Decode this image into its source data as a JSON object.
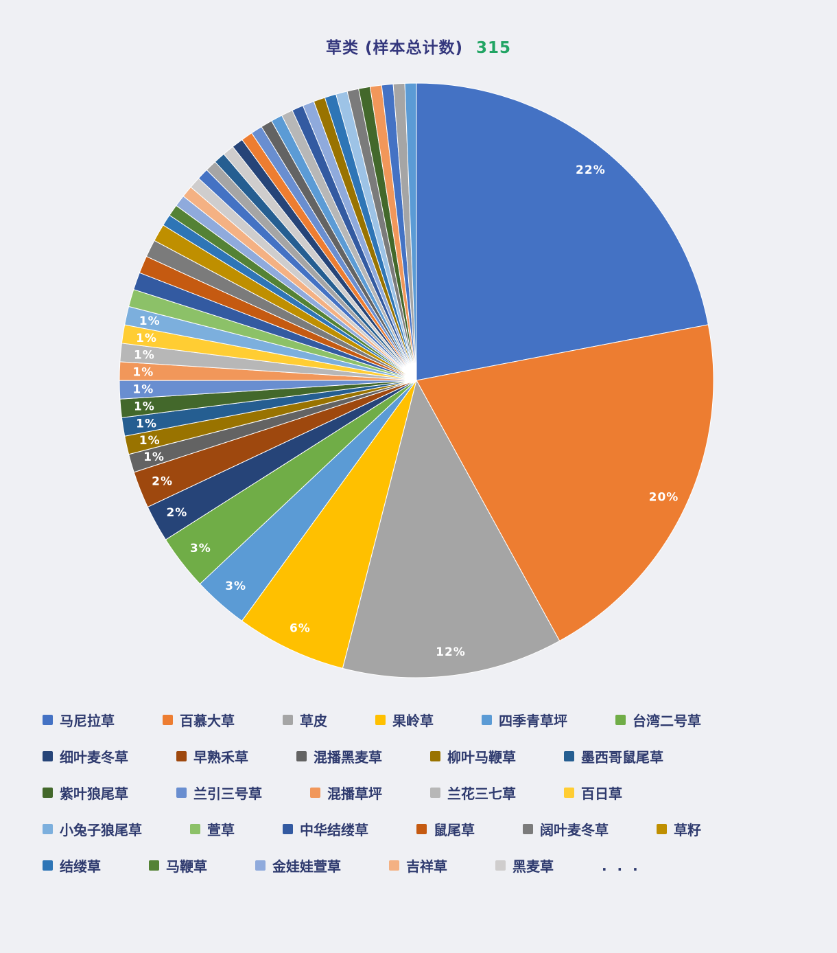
{
  "title": {
    "text": "草类 (样本总计数)",
    "total": "315",
    "text_color": "#34377d",
    "total_color": "#21a463"
  },
  "background_color": "#eff0f4",
  "chart_data": {
    "type": "pie",
    "title": "草类 (样本总计数) 315",
    "total_samples": 315,
    "legend_position": "bottom",
    "label_color": "#ffffff",
    "slices": [
      {
        "name": "马尼拉草",
        "percent": 22,
        "color": "#4472C4",
        "label": "22%"
      },
      {
        "name": "百慕大草",
        "percent": 20,
        "color": "#ED7D31",
        "label": "20%"
      },
      {
        "name": "草皮",
        "percent": 12,
        "color": "#A5A5A5",
        "label": "12%"
      },
      {
        "name": "果岭草",
        "percent": 6,
        "color": "#FFC000",
        "label": "6%"
      },
      {
        "name": "四季青草坪",
        "percent": 3,
        "color": "#5B9BD5",
        "label": "3%"
      },
      {
        "name": "台湾二号草",
        "percent": 3,
        "color": "#70AD47",
        "label": "3%"
      },
      {
        "name": "细叶麦冬草",
        "percent": 2,
        "color": "#264478",
        "label": "2%"
      },
      {
        "name": "早熟禾草",
        "percent": 2,
        "color": "#9E480E",
        "label": "2%"
      },
      {
        "name": "混播黑麦草",
        "percent": 1,
        "color": "#636363",
        "label": "1%"
      },
      {
        "name": "柳叶马鞭草",
        "percent": 1,
        "color": "#997300",
        "label": "1%"
      },
      {
        "name": "墨西哥鼠尾草",
        "percent": 1,
        "color": "#255E91",
        "label": "1%"
      },
      {
        "name": "紫叶狼尾草",
        "percent": 1,
        "color": "#43682B",
        "label": "1%"
      },
      {
        "name": "兰引三号草",
        "percent": 1,
        "color": "#698ED0",
        "label": "1%"
      },
      {
        "name": "混播草坪",
        "percent": 1,
        "color": "#F1975A",
        "label": "1%"
      },
      {
        "name": "兰花三七草",
        "percent": 1,
        "color": "#B7B7B7",
        "label": "1%"
      },
      {
        "name": "百日草",
        "percent": 1,
        "color": "#FFCD33",
        "label": "1%"
      },
      {
        "name": "小兔子狼尾草",
        "percent": 1,
        "color": "#7CAFDD",
        "label": "1%"
      },
      {
        "name": "萱草",
        "percent": 0.95,
        "color": "#8CC168",
        "label": null
      },
      {
        "name": "中华结缕草",
        "percent": 0.95,
        "color": "#335AA1",
        "label": null
      },
      {
        "name": "鼠尾草",
        "percent": 0.95,
        "color": "#C55A11",
        "label": null
      },
      {
        "name": "阔叶麦冬草",
        "percent": 0.95,
        "color": "#7B7B7B",
        "label": null
      },
      {
        "name": "草籽",
        "percent": 0.95,
        "color": "#BF8F00",
        "label": null
      },
      {
        "name": "结缕草",
        "percent": 0.63,
        "color": "#2E75B6",
        "label": null
      },
      {
        "name": "马鞭草",
        "percent": 0.63,
        "color": "#548235",
        "label": null
      },
      {
        "name": "金娃娃萱草",
        "percent": 0.63,
        "color": "#8FAADC",
        "label": null
      },
      {
        "name": "吉祥草",
        "percent": 0.63,
        "color": "#F4B183",
        "label": null
      },
      {
        "name": "黑麦草",
        "percent": 0.63,
        "color": "#CFCDCD",
        "label": null
      }
    ],
    "tail": {
      "note": "remaining unlabeled small categories",
      "percent_each": 0.624,
      "colors": [
        "#4472C4",
        "#A5A5A5",
        "#255E91",
        "#CFCDCD",
        "#264478",
        "#ED7D31",
        "#698ED0",
        "#636363",
        "#5B9BD5",
        "#B7B7B7",
        "#335AA1",
        "#8FAADC",
        "#997300",
        "#2E75B6",
        "#9DC3E6",
        "#7B7B7B",
        "#43682B",
        "#F1975A",
        "#4472C4",
        "#A5A5A5",
        "#5B9BD5"
      ]
    }
  },
  "legend": {
    "more_label": ". . .",
    "rows": [
      [
        "马尼拉草",
        "百慕大草",
        "草皮",
        "果岭草",
        "四季青草坪",
        "台湾二号草"
      ],
      [
        "细叶麦冬草",
        "早熟禾草",
        "混播黑麦草",
        "柳叶马鞭草",
        "墨西哥鼠尾草"
      ],
      [
        "紫叶狼尾草",
        "兰引三号草",
        "混播草坪",
        "兰花三七草",
        "百日草"
      ],
      [
        "小兔子狼尾草",
        "萱草",
        "中华结缕草",
        "鼠尾草",
        "阔叶麦冬草",
        "草籽"
      ],
      [
        "结缕草",
        "马鞭草",
        "金娃娃萱草",
        "吉祥草",
        "黑麦草",
        ". . ."
      ]
    ]
  }
}
